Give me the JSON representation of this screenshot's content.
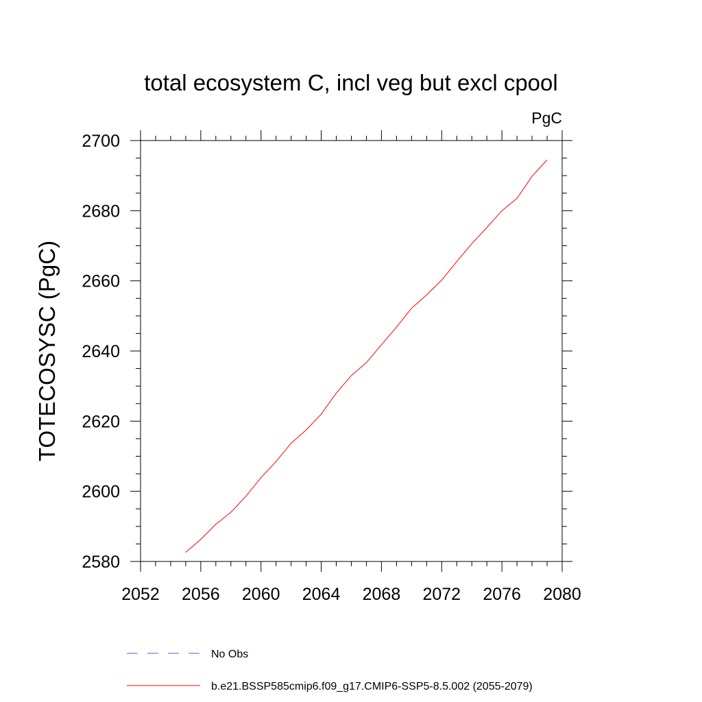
{
  "chart_data": {
    "type": "line",
    "title": "total ecosystem C, incl veg but excl cpool",
    "units": "PgC",
    "xlabel": "",
    "ylabel": "TOTECOSYSC  (PgC)",
    "xlim": [
      2052,
      2080
    ],
    "ylim": [
      2580,
      2700
    ],
    "x_ticks": [
      2052,
      2056,
      2060,
      2064,
      2068,
      2072,
      2076,
      2080
    ],
    "x_minor_step": 1,
    "y_ticks": [
      2580,
      2600,
      2620,
      2640,
      2660,
      2680,
      2700
    ],
    "y_minor_step": 5,
    "grid": false,
    "legend_position": "bottom",
    "series": [
      {
        "name": "b.e21.BSSP585cmip6.f09_g17.CMIP6-SSP5-8.5.002 (2055-2079)",
        "color": "#ff0000",
        "dash": "solid",
        "x": [
          2055,
          2056,
          2057,
          2058,
          2059,
          2060,
          2061,
          2062,
          2063,
          2064,
          2065,
          2066,
          2067,
          2068,
          2069,
          2070,
          2071,
          2072,
          2073,
          2074,
          2075,
          2076,
          2077,
          2078,
          2079
        ],
        "values": [
          2582.6,
          2586.3,
          2590.6,
          2594.0,
          2598.6,
          2603.9,
          2608.5,
          2613.7,
          2617.5,
          2622.0,
          2628.0,
          2633.0,
          2636.7,
          2641.8,
          2646.8,
          2652.2,
          2656.0,
          2660.2,
          2665.5,
          2670.6,
          2675.2,
          2680.0,
          2683.5,
          2689.8,
          2694.5
        ]
      }
    ],
    "legend": [
      {
        "label": "No Obs",
        "color": "#6a5acd",
        "dash": "dashed"
      },
      {
        "label": "b.e21.BSSP585cmip6.f09_g17.CMIP6-SSP5-8.5.002 (2055-2079)",
        "color": "#ff0000",
        "dash": "solid"
      }
    ]
  }
}
